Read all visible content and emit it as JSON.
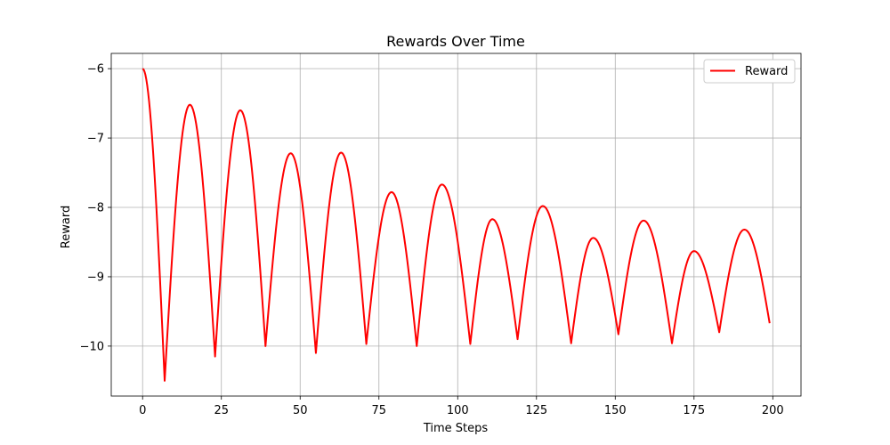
{
  "chart_data": {
    "type": "line",
    "title": "Rewards Over Time",
    "xlabel": "Time Steps",
    "ylabel": "Reward",
    "xlim": [
      -9.95,
      208.95
    ],
    "ylim": [
      -10.72,
      -5.78
    ],
    "x_ticks": [
      0,
      25,
      50,
      75,
      100,
      125,
      150,
      175,
      200
    ],
    "y_ticks": [
      -10,
      -9,
      -8,
      -7,
      -6
    ],
    "x_tick_labels": [
      "0",
      "25",
      "50",
      "75",
      "100",
      "125",
      "150",
      "175",
      "200"
    ],
    "y_tick_labels": [
      "−10",
      "−9",
      "−8",
      "−7",
      "−6"
    ],
    "grid": true,
    "legend": {
      "position": "top-right",
      "entries": [
        "Reward"
      ]
    },
    "series": [
      {
        "name": "Reward",
        "color": "#ff0000",
        "x": [
          0,
          7,
          15,
          23,
          31,
          39,
          47,
          55,
          63,
          71,
          79,
          87,
          95,
          104,
          111,
          119,
          127,
          136,
          143,
          151,
          159,
          168,
          175,
          183,
          191,
          199
        ],
        "y": [
          -6.0,
          -10.5,
          -6.52,
          -10.15,
          -6.6,
          -10.0,
          -7.22,
          -10.1,
          -7.21,
          -9.97,
          -7.78,
          -10.0,
          -7.67,
          -9.97,
          -8.17,
          -9.9,
          -7.98,
          -9.96,
          -8.44,
          -9.83,
          -8.19,
          -9.96,
          -8.63,
          -9.8,
          -8.32,
          -9.67
        ]
      }
    ]
  }
}
